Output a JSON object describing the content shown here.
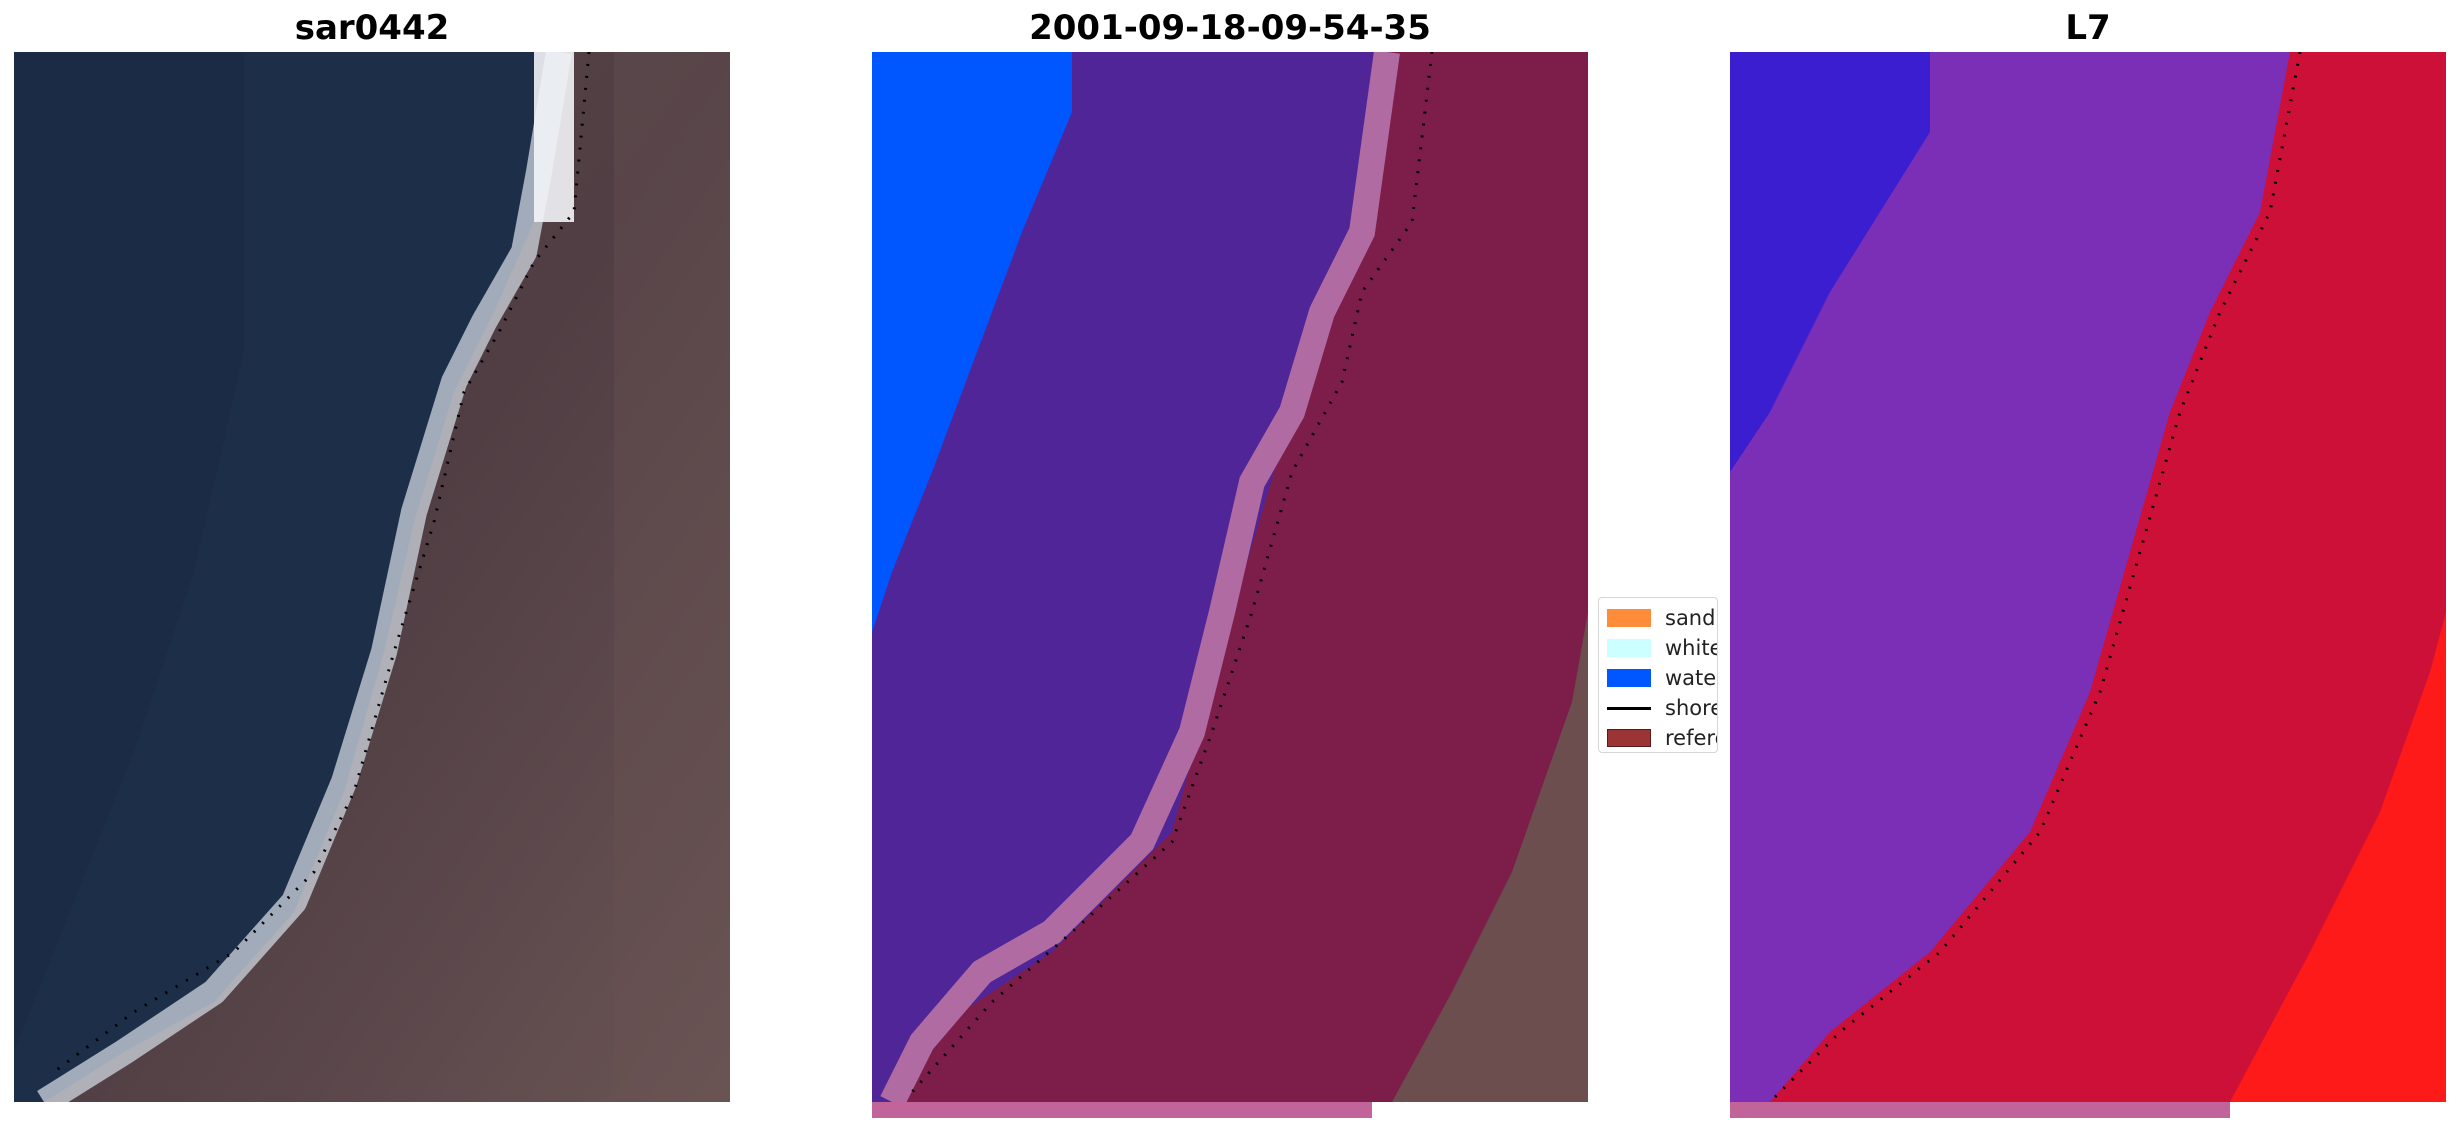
{
  "panels": [
    {
      "title": "sar0442"
    },
    {
      "title": "2001-09-18-09-54-35"
    },
    {
      "title": "L7"
    }
  ],
  "legend": {
    "items": [
      {
        "label": "sand",
        "color": "#ff8c3a",
        "kind": "patch"
      },
      {
        "label": "whitewater",
        "color": "#ccffff",
        "kind": "patch"
      },
      {
        "label": "water",
        "color": "#0057ff",
        "kind": "patch"
      },
      {
        "label": "shoreline",
        "color": "#000000",
        "kind": "line"
      },
      {
        "label": "reference shoreline",
        "color": "#9b3535",
        "kind": "patch"
      }
    ]
  },
  "colors": {
    "ocean_rgb": "#1d2e48",
    "land_rgb": "#5e4a4c",
    "whitewater_rgb": "#dfe6ee",
    "water_class": "#0057ff",
    "water_overlay": "#4f2597",
    "land_overlay": "#7c1d4a",
    "whitewater_overlay": "#b06ca2",
    "index_water": "#3a1ecf",
    "index_mid": "#7a2fb6",
    "index_land": "#cc1038",
    "index_bright": "#ff1a1a"
  }
}
